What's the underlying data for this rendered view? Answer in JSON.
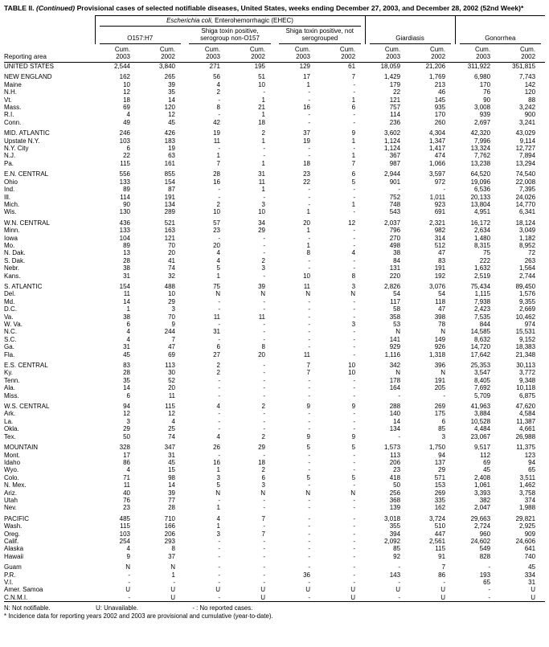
{
  "title": {
    "prefix": "TABLE II.",
    "continued": "(Continued)",
    "body": "Provisional cases of selected notifiable diseases, United States, weeks ending December 27, 2003, and December 28, 2002",
    "week": "(52nd Week)*"
  },
  "header": {
    "reporting_area": "Reporting area",
    "ehec_italic": "Escherichia coli,",
    "ehec_rest": " Enterohemorrhagic (EHEC)",
    "groups": [
      "O157:H7",
      "Shiga toxin positive, serogroup non-O157",
      "Shiga toxin positive, not serogrouped"
    ],
    "giardiasis": "Giardiasis",
    "gonorrhea": "Gonorrhea",
    "col_headers": [
      {
        "cum": "Cum.",
        "year": "2003"
      },
      {
        "cum": "Cum.",
        "year": "2002"
      },
      {
        "cum": "Cum.",
        "year": "2003"
      },
      {
        "cum": "Cum.",
        "year": "2002"
      },
      {
        "cum": "Cum.",
        "year": "2003"
      },
      {
        "cum": "Cum.",
        "year": "2002"
      },
      {
        "cum": "Cum.",
        "year": "2003"
      },
      {
        "cum": "Cum.",
        "year": "2002"
      },
      {
        "cum": "Cum.",
        "year": "2003"
      },
      {
        "cum": "Cum.",
        "year": "2002"
      }
    ]
  },
  "rows": [
    {
      "area": "UNITED STATES",
      "v": [
        "2,544",
        "3,840",
        "271",
        "195",
        "129",
        "61",
        "18,059",
        "21,206",
        "311,922",
        "351,815"
      ]
    },
    {
      "area": "NEW ENGLAND",
      "gap": true,
      "v": [
        "162",
        "265",
        "56",
        "51",
        "17",
        "7",
        "1,429",
        "1,769",
        "6,980",
        "7,743"
      ]
    },
    {
      "area": "Maine",
      "v": [
        "10",
        "39",
        "4",
        "10",
        "1",
        "-",
        "179",
        "213",
        "170",
        "142"
      ]
    },
    {
      "area": "N.H.",
      "v": [
        "12",
        "35",
        "2",
        "-",
        "-",
        "-",
        "22",
        "46",
        "76",
        "120"
      ]
    },
    {
      "area": "Vt.",
      "v": [
        "18",
        "14",
        "-",
        "1",
        "-",
        "1",
        "121",
        "145",
        "90",
        "88"
      ]
    },
    {
      "area": "Mass.",
      "v": [
        "69",
        "120",
        "8",
        "21",
        "16",
        "6",
        "757",
        "935",
        "3,008",
        "3,242"
      ]
    },
    {
      "area": "R.I.",
      "v": [
        "4",
        "12",
        "-",
        "1",
        "-",
        "-",
        "114",
        "170",
        "939",
        "900"
      ]
    },
    {
      "area": "Conn.",
      "v": [
        "49",
        "45",
        "42",
        "18",
        "-",
        "-",
        "236",
        "260",
        "2,697",
        "3,241"
      ]
    },
    {
      "area": "MID. ATLANTIC",
      "gap": true,
      "v": [
        "246",
        "426",
        "19",
        "2",
        "37",
        "9",
        "3,602",
        "4,304",
        "42,320",
        "43,029"
      ]
    },
    {
      "area": "Upstate N.Y.",
      "v": [
        "103",
        "183",
        "11",
        "1",
        "19",
        "1",
        "1,124",
        "1,347",
        "7,996",
        "9,114"
      ]
    },
    {
      "area": "N.Y. City",
      "v": [
        "6",
        "19",
        "-",
        "-",
        "-",
        "-",
        "1,124",
        "1,417",
        "13,324",
        "12,727"
      ]
    },
    {
      "area": "N.J.",
      "v": [
        "22",
        "63",
        "1",
        "-",
        "-",
        "1",
        "367",
        "474",
        "7,762",
        "7,894"
      ]
    },
    {
      "area": "Pa.",
      "v": [
        "115",
        "161",
        "7",
        "1",
        "18",
        "7",
        "987",
        "1,066",
        "13,238",
        "13,294"
      ]
    },
    {
      "area": "E.N. CENTRAL",
      "gap": true,
      "v": [
        "556",
        "855",
        "28",
        "31",
        "23",
        "6",
        "2,944",
        "3,597",
        "64,520",
        "74,540"
      ]
    },
    {
      "area": "Ohio",
      "v": [
        "133",
        "154",
        "16",
        "11",
        "22",
        "5",
        "901",
        "972",
        "19,096",
        "22,008"
      ]
    },
    {
      "area": "Ind.",
      "v": [
        "89",
        "87",
        "-",
        "1",
        "-",
        "-",
        "-",
        "-",
        "6,536",
        "7,395"
      ]
    },
    {
      "area": "Ill.",
      "v": [
        "114",
        "191",
        "-",
        "-",
        "-",
        "-",
        "752",
        "1,011",
        "20,133",
        "24,026"
      ]
    },
    {
      "area": "Mich.",
      "v": [
        "90",
        "134",
        "2",
        "3",
        "-",
        "1",
        "748",
        "923",
        "13,804",
        "14,770"
      ]
    },
    {
      "area": "Wis.",
      "v": [
        "130",
        "289",
        "10",
        "10",
        "1",
        "-",
        "543",
        "691",
        "4,951",
        "6,341"
      ]
    },
    {
      "area": "W.N. CENTRAL",
      "gap": true,
      "v": [
        "436",
        "521",
        "57",
        "34",
        "20",
        "12",
        "2,037",
        "2,321",
        "16,172",
        "18,124"
      ]
    },
    {
      "area": "Minn.",
      "v": [
        "133",
        "163",
        "23",
        "29",
        "1",
        "-",
        "796",
        "982",
        "2,634",
        "3,049"
      ]
    },
    {
      "area": "Iowa",
      "v": [
        "104",
        "121",
        "-",
        "-",
        "-",
        "-",
        "270",
        "314",
        "1,480",
        "1,182"
      ]
    },
    {
      "area": "Mo.",
      "v": [
        "89",
        "70",
        "20",
        "-",
        "1",
        "-",
        "498",
        "512",
        "8,315",
        "8,952"
      ]
    },
    {
      "area": "N. Dak.",
      "v": [
        "13",
        "20",
        "4",
        "-",
        "8",
        "4",
        "38",
        "47",
        "75",
        "72"
      ]
    },
    {
      "area": "S. Dak.",
      "v": [
        "28",
        "41",
        "4",
        "2",
        "-",
        "-",
        "84",
        "83",
        "222",
        "263"
      ]
    },
    {
      "area": "Nebr.",
      "v": [
        "38",
        "74",
        "5",
        "3",
        "-",
        "-",
        "131",
        "191",
        "1,632",
        "1,564"
      ]
    },
    {
      "area": "Kans.",
      "v": [
        "31",
        "32",
        "1",
        "-",
        "10",
        "8",
        "220",
        "192",
        "2,519",
        "2,744"
      ]
    },
    {
      "area": "S. ATLANTIC",
      "gap": true,
      "v": [
        "154",
        "488",
        "75",
        "39",
        "11",
        "3",
        "2,826",
        "3,076",
        "75,434",
        "89,450"
      ]
    },
    {
      "area": "Del.",
      "v": [
        "11",
        "10",
        "N",
        "N",
        "N",
        "N",
        "54",
        "54",
        "1,115",
        "1,576"
      ]
    },
    {
      "area": "Md.",
      "v": [
        "14",
        "29",
        "-",
        "-",
        "-",
        "-",
        "117",
        "118",
        "7,938",
        "9,355"
      ]
    },
    {
      "area": "D.C.",
      "v": [
        "1",
        "3",
        "-",
        "-",
        "-",
        "-",
        "58",
        "47",
        "2,423",
        "2,669"
      ]
    },
    {
      "area": "Va.",
      "v": [
        "38",
        "70",
        "11",
        "11",
        "-",
        "-",
        "358",
        "398",
        "7,535",
        "10,462"
      ]
    },
    {
      "area": "W. Va.",
      "v": [
        "6",
        "9",
        "-",
        "-",
        "-",
        "3",
        "53",
        "78",
        "844",
        "974"
      ]
    },
    {
      "area": "N.C.",
      "v": [
        "4",
        "244",
        "31",
        "-",
        "-",
        "-",
        "N",
        "N",
        "14,585",
        "15,531"
      ]
    },
    {
      "area": "S.C.",
      "v": [
        "4",
        "7",
        "-",
        "-",
        "-",
        "-",
        "141",
        "149",
        "8,632",
        "9,152"
      ]
    },
    {
      "area": "Ga.",
      "v": [
        "31",
        "47",
        "6",
        "8",
        "-",
        "-",
        "929",
        "926",
        "14,720",
        "18,383"
      ]
    },
    {
      "area": "Fla.",
      "v": [
        "45",
        "69",
        "27",
        "20",
        "11",
        "-",
        "1,116",
        "1,318",
        "17,642",
        "21,348"
      ]
    },
    {
      "area": "E.S. CENTRAL",
      "gap": true,
      "v": [
        "83",
        "113",
        "2",
        "-",
        "7",
        "10",
        "342",
        "396",
        "25,353",
        "30,113"
      ]
    },
    {
      "area": "Ky.",
      "v": [
        "28",
        "30",
        "2",
        "-",
        "7",
        "10",
        "N",
        "N",
        "3,547",
        "3,772"
      ]
    },
    {
      "area": "Tenn.",
      "v": [
        "35",
        "52",
        "-",
        "-",
        "-",
        "-",
        "178",
        "191",
        "8,405",
        "9,348"
      ]
    },
    {
      "area": "Ala.",
      "v": [
        "14",
        "20",
        "-",
        "-",
        "-",
        "-",
        "164",
        "205",
        "7,692",
        "10,118"
      ]
    },
    {
      "area": "Miss.",
      "v": [
        "6",
        "11",
        "-",
        "-",
        "-",
        "-",
        "-",
        "-",
        "5,709",
        "6,875"
      ]
    },
    {
      "area": "W.S. CENTRAL",
      "gap": true,
      "v": [
        "94",
        "115",
        "4",
        "2",
        "9",
        "9",
        "288",
        "269",
        "41,963",
        "47,620"
      ]
    },
    {
      "area": "Ark.",
      "v": [
        "12",
        "12",
        "-",
        "-",
        "-",
        "-",
        "140",
        "175",
        "3,884",
        "4,584"
      ]
    },
    {
      "area": "La.",
      "v": [
        "3",
        "4",
        "-",
        "-",
        "-",
        "-",
        "14",
        "6",
        "10,528",
        "11,387"
      ]
    },
    {
      "area": "Okla.",
      "v": [
        "29",
        "25",
        "-",
        "-",
        "-",
        "-",
        "134",
        "85",
        "4,484",
        "4,661"
      ]
    },
    {
      "area": "Tex.",
      "v": [
        "50",
        "74",
        "4",
        "2",
        "9",
        "9",
        "-",
        "3",
        "23,067",
        "26,988"
      ]
    },
    {
      "area": "MOUNTAIN",
      "gap": true,
      "v": [
        "328",
        "347",
        "26",
        "29",
        "5",
        "5",
        "1,573",
        "1,750",
        "9,517",
        "11,375"
      ]
    },
    {
      "area": "Mont.",
      "v": [
        "17",
        "31",
        "-",
        "-",
        "-",
        "-",
        "113",
        "94",
        "112",
        "123"
      ]
    },
    {
      "area": "Idaho",
      "v": [
        "86",
        "45",
        "16",
        "18",
        "-",
        "-",
        "206",
        "137",
        "69",
        "94"
      ]
    },
    {
      "area": "Wyo.",
      "v": [
        "4",
        "15",
        "1",
        "2",
        "-",
        "-",
        "23",
        "29",
        "45",
        "65"
      ]
    },
    {
      "area": "Colo.",
      "v": [
        "71",
        "98",
        "3",
        "6",
        "5",
        "5",
        "418",
        "571",
        "2,408",
        "3,511"
      ]
    },
    {
      "area": "N. Mex.",
      "v": [
        "11",
        "14",
        "5",
        "3",
        "-",
        "-",
        "50",
        "153",
        "1,061",
        "1,462"
      ]
    },
    {
      "area": "Ariz.",
      "v": [
        "40",
        "39",
        "N",
        "N",
        "N",
        "N",
        "256",
        "269",
        "3,393",
        "3,758"
      ]
    },
    {
      "area": "Utah",
      "v": [
        "76",
        "77",
        "-",
        "-",
        "-",
        "-",
        "368",
        "335",
        "382",
        "374"
      ]
    },
    {
      "area": "Nev.",
      "v": [
        "23",
        "28",
        "1",
        "-",
        "-",
        "-",
        "139",
        "162",
        "2,047",
        "1,988"
      ]
    },
    {
      "area": "PACIFIC",
      "gap": true,
      "v": [
        "485",
        "710",
        "4",
        "7",
        "-",
        "-",
        "3,018",
        "3,724",
        "29,663",
        "29,821"
      ]
    },
    {
      "area": "Wash.",
      "v": [
        "115",
        "166",
        "1",
        "-",
        "-",
        "-",
        "355",
        "510",
        "2,724",
        "2,925"
      ]
    },
    {
      "area": "Oreg.",
      "v": [
        "103",
        "206",
        "3",
        "7",
        "-",
        "-",
        "394",
        "447",
        "960",
        "909"
      ]
    },
    {
      "area": "Calif.",
      "v": [
        "254",
        "293",
        "-",
        "-",
        "-",
        "-",
        "2,092",
        "2,561",
        "24,602",
        "24,606"
      ]
    },
    {
      "area": "Alaska",
      "v": [
        "4",
        "8",
        "-",
        "-",
        "-",
        "-",
        "85",
        "115",
        "549",
        "641"
      ]
    },
    {
      "area": "Hawaii",
      "v": [
        "9",
        "37",
        "-",
        "-",
        "-",
        "-",
        "92",
        "91",
        "828",
        "740"
      ]
    },
    {
      "area": "Guam",
      "gap": true,
      "v": [
        "N",
        "N",
        "-",
        "-",
        "-",
        "-",
        "-",
        "7",
        "-",
        "45"
      ]
    },
    {
      "area": "P.R.",
      "v": [
        "-",
        "1",
        "-",
        "-",
        "36",
        "-",
        "143",
        "86",
        "193",
        "334"
      ]
    },
    {
      "area": "V.I.",
      "v": [
        "-",
        "-",
        "-",
        "-",
        "-",
        "-",
        "-",
        "-",
        "65",
        "31"
      ]
    },
    {
      "area": "Amer. Samoa",
      "v": [
        "U",
        "U",
        "U",
        "U",
        "U",
        "U",
        "U",
        "U",
        "-",
        "U"
      ]
    },
    {
      "area": "C.N.M.I.",
      "v": [
        "-",
        "U",
        "-",
        "U",
        "-",
        "U",
        "-",
        "U",
        "-",
        "U"
      ]
    }
  ],
  "footnotes": {
    "n": "N: Not notifiable.",
    "u": "U: Unavailable.",
    "dash": "- : No reported cases.",
    "star": "* Incidence data for reporting years 2002 and 2003 are provisional and cumulative (year-to-date)."
  }
}
